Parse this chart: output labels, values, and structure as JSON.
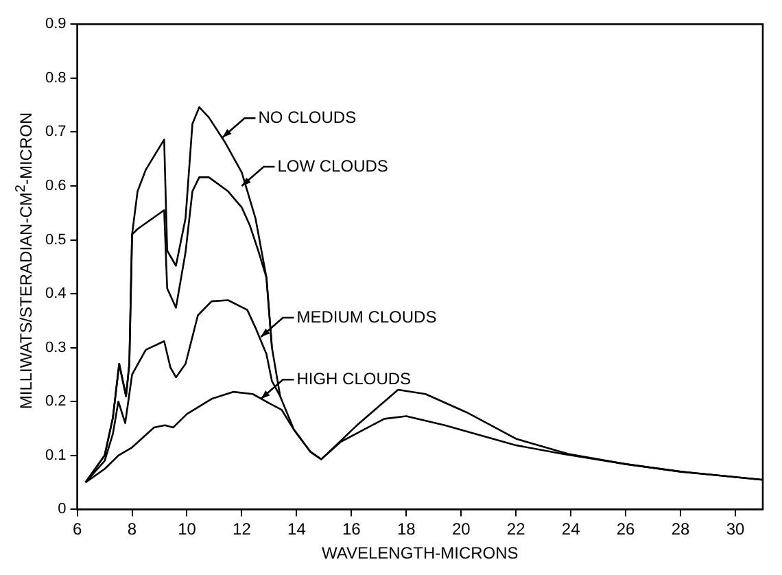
{
  "chart_data": {
    "type": "line",
    "xlabel": "WAVELENGTH-MICRONS",
    "ylabel": "MILLIWATS/STERADIAN-CM$^{2}$-MICRON",
    "xlim": [
      6,
      31
    ],
    "xticks": [
      6,
      8,
      10,
      12,
      14,
      16,
      18,
      20,
      22,
      24,
      26,
      28,
      30
    ],
    "ylim": [
      0,
      0.9
    ],
    "yticks": [
      0,
      0.1,
      0.2,
      0.3,
      0.4,
      0.5,
      0.6,
      0.7,
      0.8,
      0.9
    ],
    "grid": false,
    "legend": false,
    "marker": "none",
    "line_style": "solid",
    "series": [
      {
        "color": "#000000",
        "x": [
          6.3,
          7.0,
          7.3,
          7.53,
          7.78,
          7.9,
          8.0,
          8.2,
          8.5,
          9.17,
          9.28,
          9.6,
          9.95,
          10.2,
          10.45,
          10.8,
          11.4,
          12.0,
          12.5,
          12.9,
          13.1,
          13.4,
          13.9,
          14.5,
          14.9,
          16.2,
          17.7,
          18.7,
          20.2,
          22.0,
          23.9,
          26.0,
          28.0,
          31.0
        ],
        "values": [
          0.05,
          0.1,
          0.17,
          0.27,
          0.21,
          0.27,
          0.51,
          0.59,
          0.63,
          0.686,
          0.48,
          0.452,
          0.54,
          0.715,
          0.746,
          0.727,
          0.68,
          0.625,
          0.54,
          0.43,
          0.3,
          0.21,
          0.148,
          0.107,
          0.093,
          0.156,
          0.222,
          0.214,
          0.18,
          0.131,
          0.103,
          0.084,
          0.07,
          0.055
        ]
      },
      {
        "color": "#000000",
        "x": [
          6.3,
          7.0,
          7.3,
          7.53,
          7.78,
          7.9,
          8.0,
          8.2,
          9.17,
          9.28,
          9.6,
          9.95,
          10.2,
          10.45,
          10.8,
          11.5,
          12.0,
          12.3,
          12.6,
          12.9,
          13.1
        ],
        "values": [
          0.05,
          0.1,
          0.17,
          0.27,
          0.21,
          0.27,
          0.51,
          0.52,
          0.555,
          0.41,
          0.374,
          0.477,
          0.59,
          0.616,
          0.616,
          0.59,
          0.56,
          0.526,
          0.48,
          0.43,
          0.3
        ]
      },
      {
        "color": "#000000",
        "x": [
          6.3,
          7.0,
          7.3,
          7.5,
          7.75,
          8.0,
          8.5,
          9.17,
          9.4,
          9.6,
          9.95,
          10.4,
          10.9,
          11.5,
          12.2,
          12.5,
          12.9,
          13.1,
          13.4
        ],
        "values": [
          0.05,
          0.09,
          0.14,
          0.2,
          0.16,
          0.25,
          0.296,
          0.312,
          0.263,
          0.245,
          0.27,
          0.36,
          0.386,
          0.388,
          0.37,
          0.337,
          0.288,
          0.238,
          0.21
        ]
      },
      {
        "color": "#000000",
        "x": [
          6.3,
          7.0,
          7.5,
          8.0,
          8.8,
          9.2,
          9.5,
          10.0,
          10.9,
          11.7,
          12.4,
          13.0,
          13.45,
          13.9,
          14.5,
          14.9,
          15.6,
          16.45,
          17.2,
          18.0,
          19.4,
          22.0,
          23.7,
          26.0,
          28.0,
          31.0
        ],
        "values": [
          0.05,
          0.075,
          0.1,
          0.115,
          0.152,
          0.156,
          0.152,
          0.177,
          0.205,
          0.218,
          0.214,
          0.197,
          0.185,
          0.148,
          0.107,
          0.093,
          0.125,
          0.148,
          0.168,
          0.173,
          0.156,
          0.119,
          0.103,
          0.084,
          0.07,
          0.055
        ]
      }
    ],
    "annotations": [
      {
        "text": "NO CLOUDS",
        "x": 11.3,
        "y": 0.69
      },
      {
        "text": "LOW CLOUDS",
        "x": 12.0,
        "y": 0.6
      },
      {
        "text": "MEDIUM CLOUDS",
        "x": 12.7,
        "y": 0.32
      },
      {
        "text": "HIGH CLOUDS",
        "x": 12.7,
        "y": 0.205
      }
    ]
  }
}
